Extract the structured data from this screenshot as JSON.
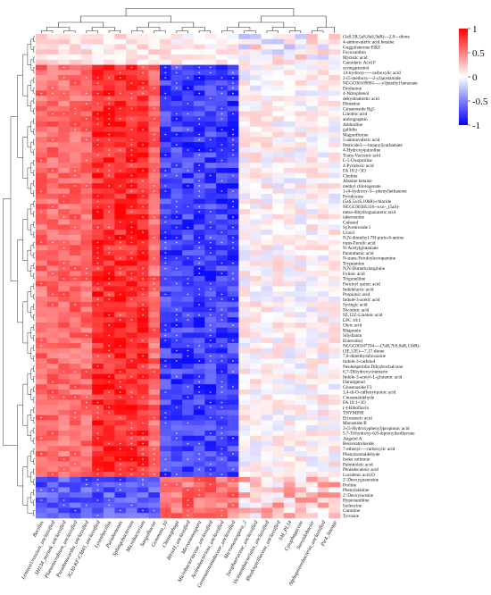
{
  "chart_data": {
    "type": "heatmap",
    "title": "",
    "xlabel": "",
    "ylabel": "",
    "columns": [
      "Bacillus",
      "Lentzea/crossium_unclassified",
      "SH134_norank_unclassified",
      "Planomicrobium_unclassified",
      "Pseudonocardia_unclassified",
      "JG30-KF-CM45_unclassified",
      "Lysinibacillus",
      "Pseudomonas",
      "Sphingobacterium",
      "Microbacterium",
      "Sanguibacter",
      "Gemmata_10",
      "Chitinophaga",
      "BIrii41_unclassified",
      "Micromonospora",
      "Microbacteriaceae_unclassified",
      "Actinobacteriota_unclassified",
      "Gemmatimonadaceae_unclassified",
      "Micromonospora_2",
      "Isosphaeraceae_unclassified",
      "Vicinamibacteriales_unclassified",
      "Rhodospirillaceae_unclassified",
      "SM_PL14",
      "Cytophagaceae",
      "Steroidobacter",
      "Alphaproteobacteria_unclassified",
      "Pir4_lineage"
    ],
    "rows": [
      "(3aS,5R,5aS,8aS,9aR)—2,8—dione",
      "4-aminovaleric acid betaine",
      "Guggulsterone E&Z",
      "Fucoxanthin",
      "Myristic acid",
      "Ganoderic Acid F",
      "syringaresinol",
      "14-hydroxy-----carboxylic acid",
      "2-(5-methoxy---2-yl)acetamide",
      "NCGC00169681-----yl]methyl benzoate",
      "Drofenine",
      "4-Nitrophenol",
      "dehydroabietic acid",
      "Himatine",
      "Ginsenoside Rg5",
      "Linoleic acid",
      "andrographin",
      "Anthraline",
      "gallidin",
      "Magnoflorine",
      "5-aminovaleric acid",
      "Pesticide3----butanyl]carbamate",
      "4-Hydroxyquinoline",
      "Trans-Vaccenic acid",
      "L-5-Oxoproline",
      "4-Pyridoxic acid",
      "FA 18:2+3O",
      "Choline",
      "Alanine betaine",
      "methyl chlorogenate",
      "1-(4-hydroxy-3---phenyl)ethanone",
      "Pyridoxine",
      "(5aS,5a1S,10bR)-chloride",
      "NCGC00385316--oxo-_(5aS)-",
      "meso-dihydroguaiaretic acid",
      "taberosnine",
      "Cafestol",
      "Sylvestroside I",
      "Uracil",
      "N,N-dimethyl-7H-purin-6-amine",
      "trans-Ferulic acid",
      "N-Acetylglutamate",
      "Pantothenic acid",
      "N-trans-Feruloyloctopamine",
      "Tryptamine",
      "N,N-Dimethylarginine",
      "Folinic acid",
      "Trigonelline",
      "Feruloyl quinic acid",
      "Indolelactic acid",
      "Propionic acid",
      "Indole-3-acetic acid",
      "Syringic acid",
      "Nicotinic acid",
      "9Z,12Z-Linoleic acid",
      "LPC 18:1",
      "Oleic acid",
      "Rhaponin",
      "Silydianin",
      "Enterodiol",
      "NCGC00347704----(7aR,7bS,8aR,11bR)-",
      "(3E,12E)---7,17-dione",
      "7,8-dimethylalloxazine",
      "Indole-3-carbinol",
      "Neohesperidin Dihydrochalcone",
      "6,7-Dihydroxycoumarin",
      "Indole-3-acetyl-L-glutamic acid",
      "Darutigenol",
      "Ginsenoside F3",
      "3,4-di-O-caffeoylquinic acid",
      "Cinnamaldehyde",
      "FA 18:1+3O",
      "(-)-Riboflavin",
      "THYMINE",
      "Eicosenoic acid",
      "Macamide B",
      "3-(3-Hydroxyphenyl)propionic acid",
      "5,7-Trihydroxy-6,8-diprenylisoflavone",
      "Angelol A",
      "Resveratroloside",
      "7-ethenyl----carboxylic acid",
      "Phenylacetaldehyde",
      "Isoku rarinone",
      "Palmitoleic acid",
      "Pentadecanoic acid",
      "Lucidenic acid D",
      "2'-Deoxyguanosine",
      "Proline",
      "Phenylalanine",
      "2'-Deoxyinosine",
      "Hypoxanthine",
      "Isoleucine",
      "Carnitine",
      "Tyrosine"
    ],
    "groups": {
      "group_a_end_row": 86,
      "col_block_1_end": 11,
      "col_block_2_end": 18
    },
    "color_scale": {
      "min": -1,
      "max": 1,
      "ticks": [
        "1",
        "0.5",
        "0",
        "-0.5",
        "-1"
      ],
      "colors": [
        "#0000ff",
        "#ffffff",
        "#ff0000"
      ]
    },
    "significance_marker": "*"
  }
}
